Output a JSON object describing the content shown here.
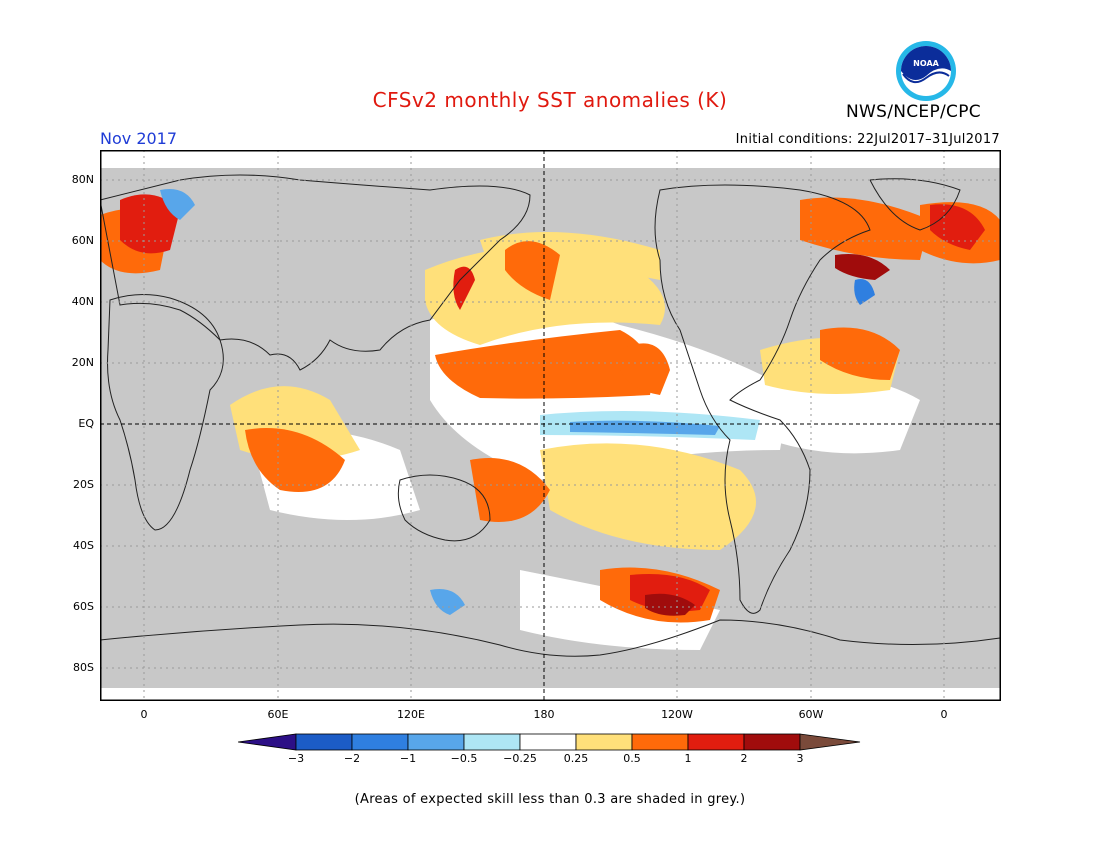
{
  "title": "CFSv2 monthly SST anomalies (K)",
  "agency": "NWS/NCEP/CPC",
  "logo_text": "NOAA",
  "month_label": "Nov 2017",
  "initial_conditions": "Initial conditions: 22Jul2017–31Jul2017",
  "footnote": "(Areas of expected skill less than 0.3 are shaded in grey.)",
  "map": {
    "lat_labels": [
      "80N",
      "60N",
      "40N",
      "20N",
      "EQ",
      "20S",
      "40S",
      "60S",
      "80S"
    ],
    "lon_labels": [
      "0",
      "60E",
      "120E",
      "180",
      "120W",
      "60W",
      "0"
    ],
    "colors": {
      "skill_mask": "#c8c8c8",
      "grid": "#9a9a9a",
      "coast": "#222222"
    }
  },
  "colorbar": {
    "labels": [
      "−3",
      "−2",
      "−1",
      "−0.5",
      "−0.25",
      "0.25",
      "0.5",
      "1",
      "2",
      "3"
    ],
    "colors": [
      "#2c0f86",
      "#1c5cc6",
      "#2f7fe0",
      "#58a6ea",
      "#aee6f5",
      "#ffffff",
      "#ffe07a",
      "#ff6a0a",
      "#e11d0f",
      "#a00c0c",
      "#7a4a3a"
    ]
  }
}
